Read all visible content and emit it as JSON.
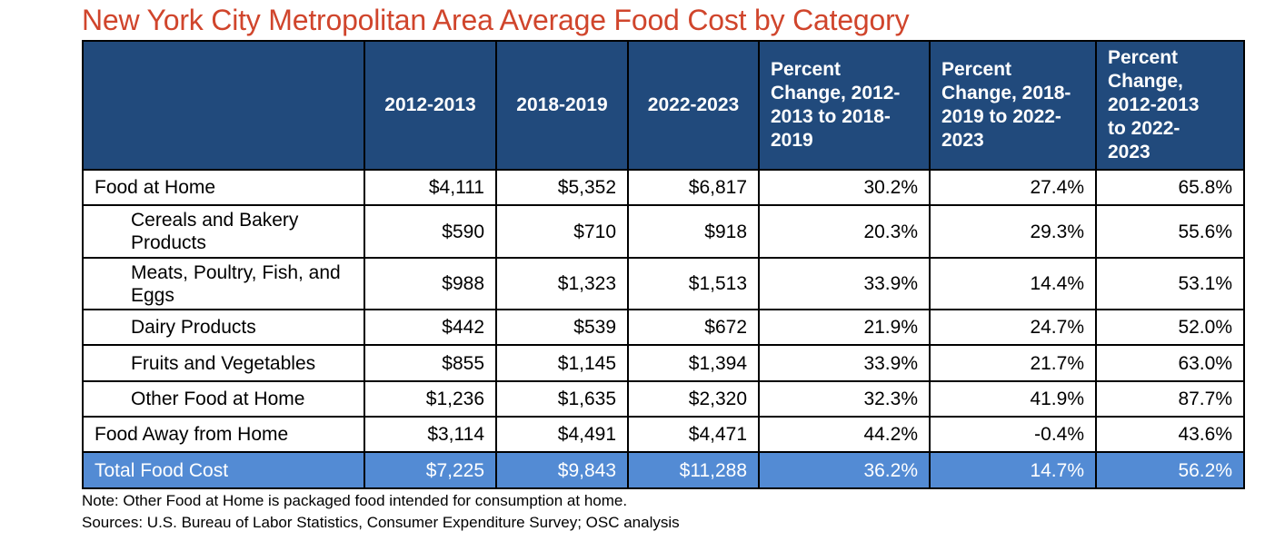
{
  "title": "New York City Metropolitan Area Average Food Cost by Category",
  "colors": {
    "title": "#d0452c",
    "header_bg": "#214a7c",
    "total_bg": "#538bd4"
  },
  "headers": [
    "",
    "2012-2013",
    "2018-2019",
    "2022-2023",
    "Percent Change, 2012-2013 to 2018-2019",
    "Percent Change, 2018-2019 to 2022-2023",
    "Percent Change, 2012-2013 to 2022-2023"
  ],
  "rows": [
    {
      "label": "Food at Home",
      "values": [
        "$4,111",
        "$5,352",
        "$6,817",
        "30.2%",
        "27.4%",
        "65.8%"
      ]
    },
    {
      "label": "Cereals and Bakery Products",
      "values": [
        "$590",
        "$710",
        "$918",
        "20.3%",
        "29.3%",
        "55.6%"
      ]
    },
    {
      "label": "Meats, Poultry, Fish, and Eggs",
      "values": [
        "$988",
        "$1,323",
        "$1,513",
        "33.9%",
        "14.4%",
        "53.1%"
      ]
    },
    {
      "label": "Dairy Products",
      "values": [
        "$442",
        "$539",
        "$672",
        "21.9%",
        "24.7%",
        "52.0%"
      ]
    },
    {
      "label": "Fruits and Vegetables",
      "values": [
        "$855",
        "$1,145",
        "$1,394",
        "33.9%",
        "21.7%",
        "63.0%"
      ]
    },
    {
      "label": "Other Food at Home",
      "values": [
        "$1,236",
        "$1,635",
        "$2,320",
        "32.3%",
        "41.9%",
        "87.7%"
      ]
    },
    {
      "label": "Food Away from Home",
      "values": [
        "$3,114",
        "$4,491",
        "$4,471",
        "44.2%",
        "-0.4%",
        "43.6%"
      ]
    },
    {
      "label": "Total Food Cost",
      "values": [
        "$7,225",
        "$9,843",
        "$11,288",
        "36.2%",
        "14.7%",
        "56.2%"
      ]
    }
  ],
  "note": "Note: Other Food at Home is packaged food intended for consumption at home.",
  "sources": "Sources: U.S. Bureau of Labor Statistics, Consumer Expenditure Survey; OSC analysis"
}
